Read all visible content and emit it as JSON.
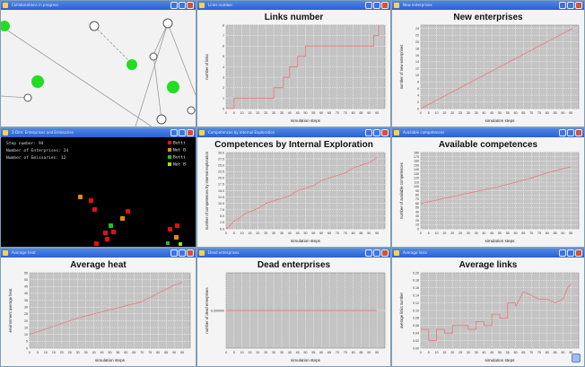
{
  "windows": {
    "network": {
      "title": "Collaborations in progress"
    },
    "links_number": {
      "title": "Links number"
    },
    "new_enterprises": {
      "title": "New enterprises"
    },
    "map": {
      "title": "2-Dim: Enterprises and Emissaries",
      "lines": [
        "Step number: 94",
        "Number of Enterprises: 24",
        "Number of Emissaries: 12"
      ],
      "legend": [
        {
          "label": "Butti",
          "color": "#e01010"
        },
        {
          "label": "Not B",
          "color": "#e08a10"
        },
        {
          "label": "Butti",
          "color": "#20c020"
        },
        {
          "label": "Not B",
          "color": "#a0e020"
        }
      ]
    },
    "competences_internal": {
      "title": "Competences by internal Exploration"
    },
    "available_competences": {
      "title": "Available competences"
    },
    "average_heat": {
      "title": "Average heat"
    },
    "dead_enterprises": {
      "title": "Dead enterprises"
    },
    "average_links": {
      "title": "Average links"
    }
  },
  "chart_data": [
    {
      "id": "links_number",
      "type": "line",
      "title": "Links number",
      "xlabel": "simulation steps",
      "ylabel": "number of links",
      "xlim": [
        0,
        100
      ],
      "ylim": [
        0,
        8
      ],
      "xticks": [
        0,
        5,
        10,
        15,
        20,
        25,
        30,
        35,
        40,
        45,
        50,
        55,
        60,
        65,
        70,
        75,
        80,
        85,
        90,
        95
      ],
      "yticks": [
        0,
        1,
        2,
        3,
        4,
        5,
        6,
        7,
        8
      ],
      "series": [
        {
          "color": "#e88080",
          "x": [
            0,
            5,
            5,
            30,
            30,
            36,
            36,
            40,
            40,
            45,
            45,
            50,
            50,
            75,
            75,
            93,
            93,
            96,
            96
          ],
          "y": [
            0,
            0,
            1,
            1,
            2,
            2,
            3,
            3,
            4,
            4,
            5,
            5,
            6,
            6,
            6,
            6,
            7,
            7,
            8
          ]
        }
      ]
    },
    {
      "id": "new_enterprises",
      "type": "line",
      "title": "New enterprises",
      "xlabel": "simulation steps",
      "ylabel": "number of new enterprises",
      "xlim": [
        0,
        100
      ],
      "ylim": [
        0,
        25
      ],
      "xticks": [
        0,
        5,
        10,
        15,
        20,
        25,
        30,
        35,
        40,
        45,
        50,
        55,
        60,
        65,
        70,
        75,
        80,
        85,
        90,
        95
      ],
      "yticks": [
        0,
        2,
        4,
        6,
        8,
        10,
        12,
        14,
        16,
        18,
        20,
        22,
        24
      ],
      "series": [
        {
          "color": "#e88080",
          "x": [
            0,
            4,
            8,
            12,
            16,
            20,
            24,
            28,
            32,
            36,
            40,
            44,
            48,
            52,
            56,
            60,
            64,
            68,
            72,
            76,
            80,
            84,
            88,
            92,
            96
          ],
          "y": [
            0,
            1,
            2,
            3,
            4,
            5,
            6,
            7,
            8,
            9,
            10,
            11,
            12,
            13,
            14,
            15,
            16,
            17,
            18,
            19,
            20,
            21,
            22,
            23,
            24
          ]
        }
      ]
    },
    {
      "id": "competences_internal",
      "type": "line",
      "title": "Competences by Internal Exploration",
      "xlabel": "simulation steps",
      "ylabel": "number of competences by internal exploration",
      "xlim": [
        0,
        100
      ],
      "ylim": [
        0,
        30
      ],
      "xticks": [
        0,
        5,
        10,
        15,
        20,
        25,
        30,
        35,
        40,
        45,
        50,
        55,
        60,
        65,
        70,
        75,
        80,
        85,
        90,
        95
      ],
      "yticks": [
        0,
        2.5,
        5,
        7.5,
        10,
        12.5,
        15,
        17.5,
        20,
        22.5,
        25,
        27.5,
        30
      ],
      "series": [
        {
          "color": "#e88080",
          "x": [
            0,
            2,
            5,
            8,
            12,
            16,
            20,
            25,
            30,
            35,
            40,
            45,
            50,
            55,
            60,
            65,
            70,
            75,
            80,
            85,
            90,
            95
          ],
          "y": [
            0,
            1,
            3,
            4,
            6,
            7,
            8,
            10,
            11,
            12,
            13,
            15,
            16,
            17,
            19,
            20,
            21,
            22,
            24,
            25,
            26,
            28
          ]
        }
      ]
    },
    {
      "id": "available_competences",
      "type": "line",
      "title": "Available competences",
      "xlabel": "simulation steps",
      "ylabel": "number of available competences",
      "xlim": [
        0,
        100
      ],
      "ylim": [
        0,
        180
      ],
      "xticks": [
        0,
        5,
        10,
        15,
        20,
        25,
        30,
        35,
        40,
        45,
        50,
        55,
        60,
        65,
        70,
        75,
        80,
        85,
        90,
        95
      ],
      "yticks": [
        0,
        10,
        20,
        30,
        40,
        50,
        60,
        70,
        80,
        90,
        100,
        110,
        120,
        130,
        140,
        150,
        160,
        170,
        180
      ],
      "series": [
        {
          "color": "#e88080",
          "x": [
            0,
            10,
            20,
            30,
            40,
            50,
            60,
            70,
            80,
            90,
            95
          ],
          "y": [
            60,
            68,
            76,
            84,
            92,
            100,
            110,
            120,
            132,
            142,
            146
          ]
        }
      ]
    },
    {
      "id": "average_heat",
      "type": "line",
      "title": "Average heat",
      "xlabel": "simulation steps",
      "ylabel": "environment average heat",
      "xlim": [
        0,
        100
      ],
      "ylim": [
        0,
        55
      ],
      "xticks": [
        0,
        5,
        10,
        15,
        20,
        25,
        30,
        35,
        40,
        45,
        50,
        55,
        60,
        65,
        70,
        75,
        80,
        85,
        90,
        95
      ],
      "yticks": [
        0,
        5,
        10,
        15,
        20,
        25,
        30,
        35,
        40,
        45,
        50,
        55
      ],
      "series": [
        {
          "color": "#e88080",
          "x": [
            0,
            10,
            20,
            30,
            40,
            50,
            60,
            70,
            80,
            90,
            95
          ],
          "y": [
            10,
            14,
            18,
            22,
            25,
            28,
            31,
            34,
            40,
            46,
            48
          ]
        }
      ]
    },
    {
      "id": "dead_enterprises",
      "type": "line",
      "title": "Dead enterprises",
      "xlabel": "simulation steps",
      "ylabel": "number of dead enterprises",
      "xlim": [
        0,
        100
      ],
      "ylim": [
        -1,
        1
      ],
      "xticks": [
        0,
        5,
        10,
        15,
        20,
        25,
        30,
        35,
        40,
        45,
        50,
        55,
        60,
        65,
        70,
        75,
        80,
        85,
        90,
        95
      ],
      "yticks": [
        0
      ],
      "ytick_labels": [
        "0,000000"
      ],
      "series": [
        {
          "color": "#e88080",
          "x": [
            0,
            95
          ],
          "y": [
            0,
            0
          ]
        }
      ]
    },
    {
      "id": "average_links",
      "type": "line",
      "title": "Average links",
      "xlabel": "simulation steps",
      "ylabel": "average links number",
      "xlim": [
        0,
        100
      ],
      "ylim": [
        0.0,
        0.2
      ],
      "xticks": [
        0,
        5,
        10,
        15,
        20,
        25,
        30,
        35,
        40,
        45,
        50,
        55,
        60,
        65,
        70,
        75,
        80,
        85,
        90,
        95
      ],
      "yticks": [
        0.0,
        0.02,
        0.04,
        0.06,
        0.08,
        0.1,
        0.12,
        0.14,
        0.16,
        0.18,
        0.2
      ],
      "series": [
        {
          "color": "#e88080",
          "x": [
            0,
            5,
            5,
            10,
            10,
            15,
            15,
            20,
            20,
            30,
            30,
            35,
            35,
            40,
            40,
            45,
            45,
            50,
            50,
            55,
            55,
            60,
            60,
            65,
            70,
            75,
            80,
            85,
            90,
            93,
            95
          ],
          "y": [
            0.05,
            0.05,
            0.02,
            0.02,
            0.05,
            0.05,
            0.04,
            0.04,
            0.06,
            0.06,
            0.05,
            0.05,
            0.07,
            0.07,
            0.06,
            0.06,
            0.09,
            0.09,
            0.08,
            0.08,
            0.12,
            0.12,
            0.11,
            0.15,
            0.14,
            0.13,
            0.13,
            0.12,
            0.13,
            0.16,
            0.17
          ]
        }
      ]
    }
  ]
}
